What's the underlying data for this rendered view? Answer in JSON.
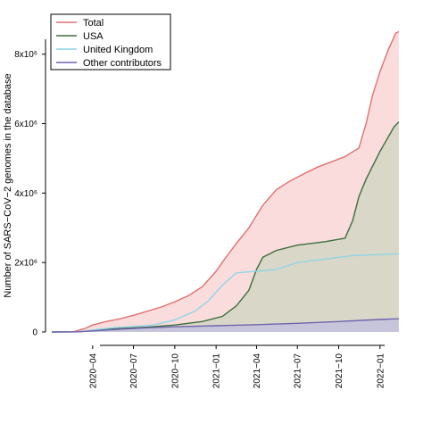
{
  "chart_data": {
    "type": "area",
    "title": "",
    "xlabel": "",
    "ylabel": "Number of SARS−CoV−2 genomes in the database",
    "x_ticks": [
      "2020−04",
      "2020−07",
      "2020−10",
      "2021−01",
      "2021−04",
      "2021−07",
      "2021−10",
      "2022−01"
    ],
    "y_ticks": [
      {
        "value": 0,
        "label": "0"
      },
      {
        "value": 2000000,
        "label": "2x10⁶"
      },
      {
        "value": 4000000,
        "label": "4x10⁶"
      },
      {
        "value": 6000000,
        "label": "6x10⁶"
      },
      {
        "value": 8000000,
        "label": "8x10⁶"
      }
    ],
    "xlim": [
      "2020-01-01",
      "2022-02-28"
    ],
    "ylim": [
      0,
      9200000
    ],
    "grid": false,
    "legend_position": "top-left",
    "series": [
      {
        "name": "Total",
        "color": "#e07070",
        "fill": "#fbdcdc",
        "points": [
          [
            "2020-01-01",
            0
          ],
          [
            "2020-02-20",
            10000
          ],
          [
            "2020-03-15",
            100000
          ],
          [
            "2020-04-01",
            200000
          ],
          [
            "2020-05-01",
            300000
          ],
          [
            "2020-06-01",
            380000
          ],
          [
            "2020-07-01",
            480000
          ],
          [
            "2020-08-01",
            600000
          ],
          [
            "2020-09-01",
            720000
          ],
          [
            "2020-10-01",
            870000
          ],
          [
            "2020-11-01",
            1050000
          ],
          [
            "2020-12-01",
            1300000
          ],
          [
            "2021-01-01",
            1750000
          ],
          [
            "2021-01-20",
            2100000
          ],
          [
            "2021-02-15",
            2550000
          ],
          [
            "2021-03-15",
            3000000
          ],
          [
            "2021-04-15",
            3650000
          ],
          [
            "2021-05-15",
            4100000
          ],
          [
            "2021-06-15",
            4350000
          ],
          [
            "2021-07-15",
            4550000
          ],
          [
            "2021-08-15",
            4750000
          ],
          [
            "2021-09-15",
            4900000
          ],
          [
            "2021-10-15",
            5050000
          ],
          [
            "2021-11-15",
            5300000
          ],
          [
            "2021-12-01",
            6000000
          ],
          [
            "2021-12-15",
            6800000
          ],
          [
            "2022-01-01",
            7500000
          ],
          [
            "2022-01-20",
            8150000
          ],
          [
            "2022-02-05",
            8600000
          ],
          [
            "2022-02-12",
            8650000
          ]
        ]
      },
      {
        "name": "USA",
        "color": "#3d6e3d",
        "fill": "#d9d7c7",
        "points": [
          [
            "2020-01-01",
            0
          ],
          [
            "2020-03-01",
            5000
          ],
          [
            "2020-04-01",
            50000
          ],
          [
            "2020-06-01",
            100000
          ],
          [
            "2020-08-01",
            140000
          ],
          [
            "2020-10-01",
            200000
          ],
          [
            "2020-12-01",
            300000
          ],
          [
            "2021-01-15",
            450000
          ],
          [
            "2021-02-15",
            750000
          ],
          [
            "2021-03-15",
            1200000
          ],
          [
            "2021-04-01",
            1800000
          ],
          [
            "2021-04-15",
            2150000
          ],
          [
            "2021-05-15",
            2350000
          ],
          [
            "2021-07-01",
            2500000
          ],
          [
            "2021-09-01",
            2600000
          ],
          [
            "2021-10-15",
            2700000
          ],
          [
            "2021-11-01",
            3200000
          ],
          [
            "2021-11-15",
            3900000
          ],
          [
            "2021-12-01",
            4400000
          ],
          [
            "2022-01-01",
            5200000
          ],
          [
            "2022-02-01",
            5900000
          ],
          [
            "2022-02-12",
            6050000
          ]
        ]
      },
      {
        "name": "United Kingdom",
        "color": "#8ed6e6",
        "fill": "none",
        "points": [
          [
            "2020-01-01",
            0
          ],
          [
            "2020-03-01",
            5000
          ],
          [
            "2020-04-01",
            60000
          ],
          [
            "2020-05-15",
            120000
          ],
          [
            "2020-07-01",
            160000
          ],
          [
            "2020-08-15",
            200000
          ],
          [
            "2020-10-01",
            350000
          ],
          [
            "2020-11-15",
            600000
          ],
          [
            "2020-12-15",
            900000
          ],
          [
            "2021-01-15",
            1350000
          ],
          [
            "2021-02-15",
            1700000
          ],
          [
            "2021-04-01",
            1750000
          ],
          [
            "2021-05-15",
            1800000
          ],
          [
            "2021-07-01",
            2000000
          ],
          [
            "2021-09-01",
            2100000
          ],
          [
            "2021-11-01",
            2200000
          ],
          [
            "2022-02-12",
            2250000
          ]
        ]
      },
      {
        "name": "Other contributors",
        "color": "#6f65ad",
        "fill": "#c7c5dc",
        "points": [
          [
            "2020-01-01",
            0
          ],
          [
            "2020-03-01",
            5000
          ],
          [
            "2020-04-01",
            30000
          ],
          [
            "2020-06-01",
            80000
          ],
          [
            "2020-08-01",
            120000
          ],
          [
            "2020-10-01",
            150000
          ],
          [
            "2021-01-01",
            180000
          ],
          [
            "2021-04-01",
            210000
          ],
          [
            "2021-07-01",
            250000
          ],
          [
            "2021-10-01",
            300000
          ],
          [
            "2022-01-01",
            360000
          ],
          [
            "2022-02-12",
            380000
          ]
        ]
      }
    ]
  }
}
